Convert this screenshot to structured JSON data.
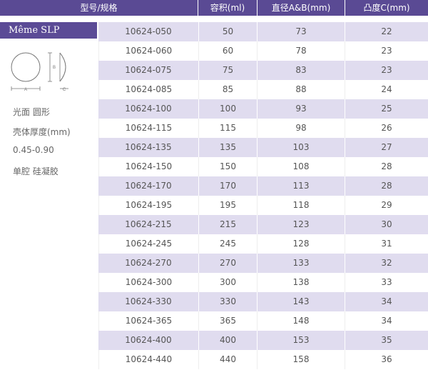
{
  "table": {
    "headers": [
      "型号/规格",
      "容积(ml)",
      "直径A&B(mm)",
      "凸度C(mm)"
    ],
    "rows": [
      [
        "10624-050",
        "50",
        "73",
        "22"
      ],
      [
        "10624-060",
        "60",
        "78",
        "23"
      ],
      [
        "10624-075",
        "75",
        "83",
        "23"
      ],
      [
        "10624-085",
        "85",
        "88",
        "24"
      ],
      [
        "10624-100",
        "100",
        "93",
        "25"
      ],
      [
        "10624-115",
        "115",
        "98",
        "26"
      ],
      [
        "10624-135",
        "135",
        "103",
        "27"
      ],
      [
        "10624-150",
        "150",
        "108",
        "28"
      ],
      [
        "10624-170",
        "170",
        "113",
        "28"
      ],
      [
        "10624-195",
        "195",
        "118",
        "29"
      ],
      [
        "10624-215",
        "215",
        "123",
        "30"
      ],
      [
        "10624-245",
        "245",
        "128",
        "31"
      ],
      [
        "10624-270",
        "270",
        "133",
        "32"
      ],
      [
        "10624-300",
        "300",
        "138",
        "33"
      ],
      [
        "10624-330",
        "330",
        "143",
        "34"
      ],
      [
        "10624-365",
        "365",
        "148",
        "34"
      ],
      [
        "10624-400",
        "400",
        "153",
        "35"
      ],
      [
        "10624-440",
        "440",
        "158",
        "36"
      ]
    ]
  },
  "product": {
    "name": "Même SLP",
    "diagram_labels": {
      "a": "A",
      "b": "B",
      "c": "C"
    },
    "specs": [
      "光面 圆形",
      "壳体厚度(mm)",
      "0.45-0.90",
      "单腔 硅凝胶"
    ]
  },
  "colors": {
    "header": "#5a4a94",
    "shaded_row": "#e0dcef"
  }
}
